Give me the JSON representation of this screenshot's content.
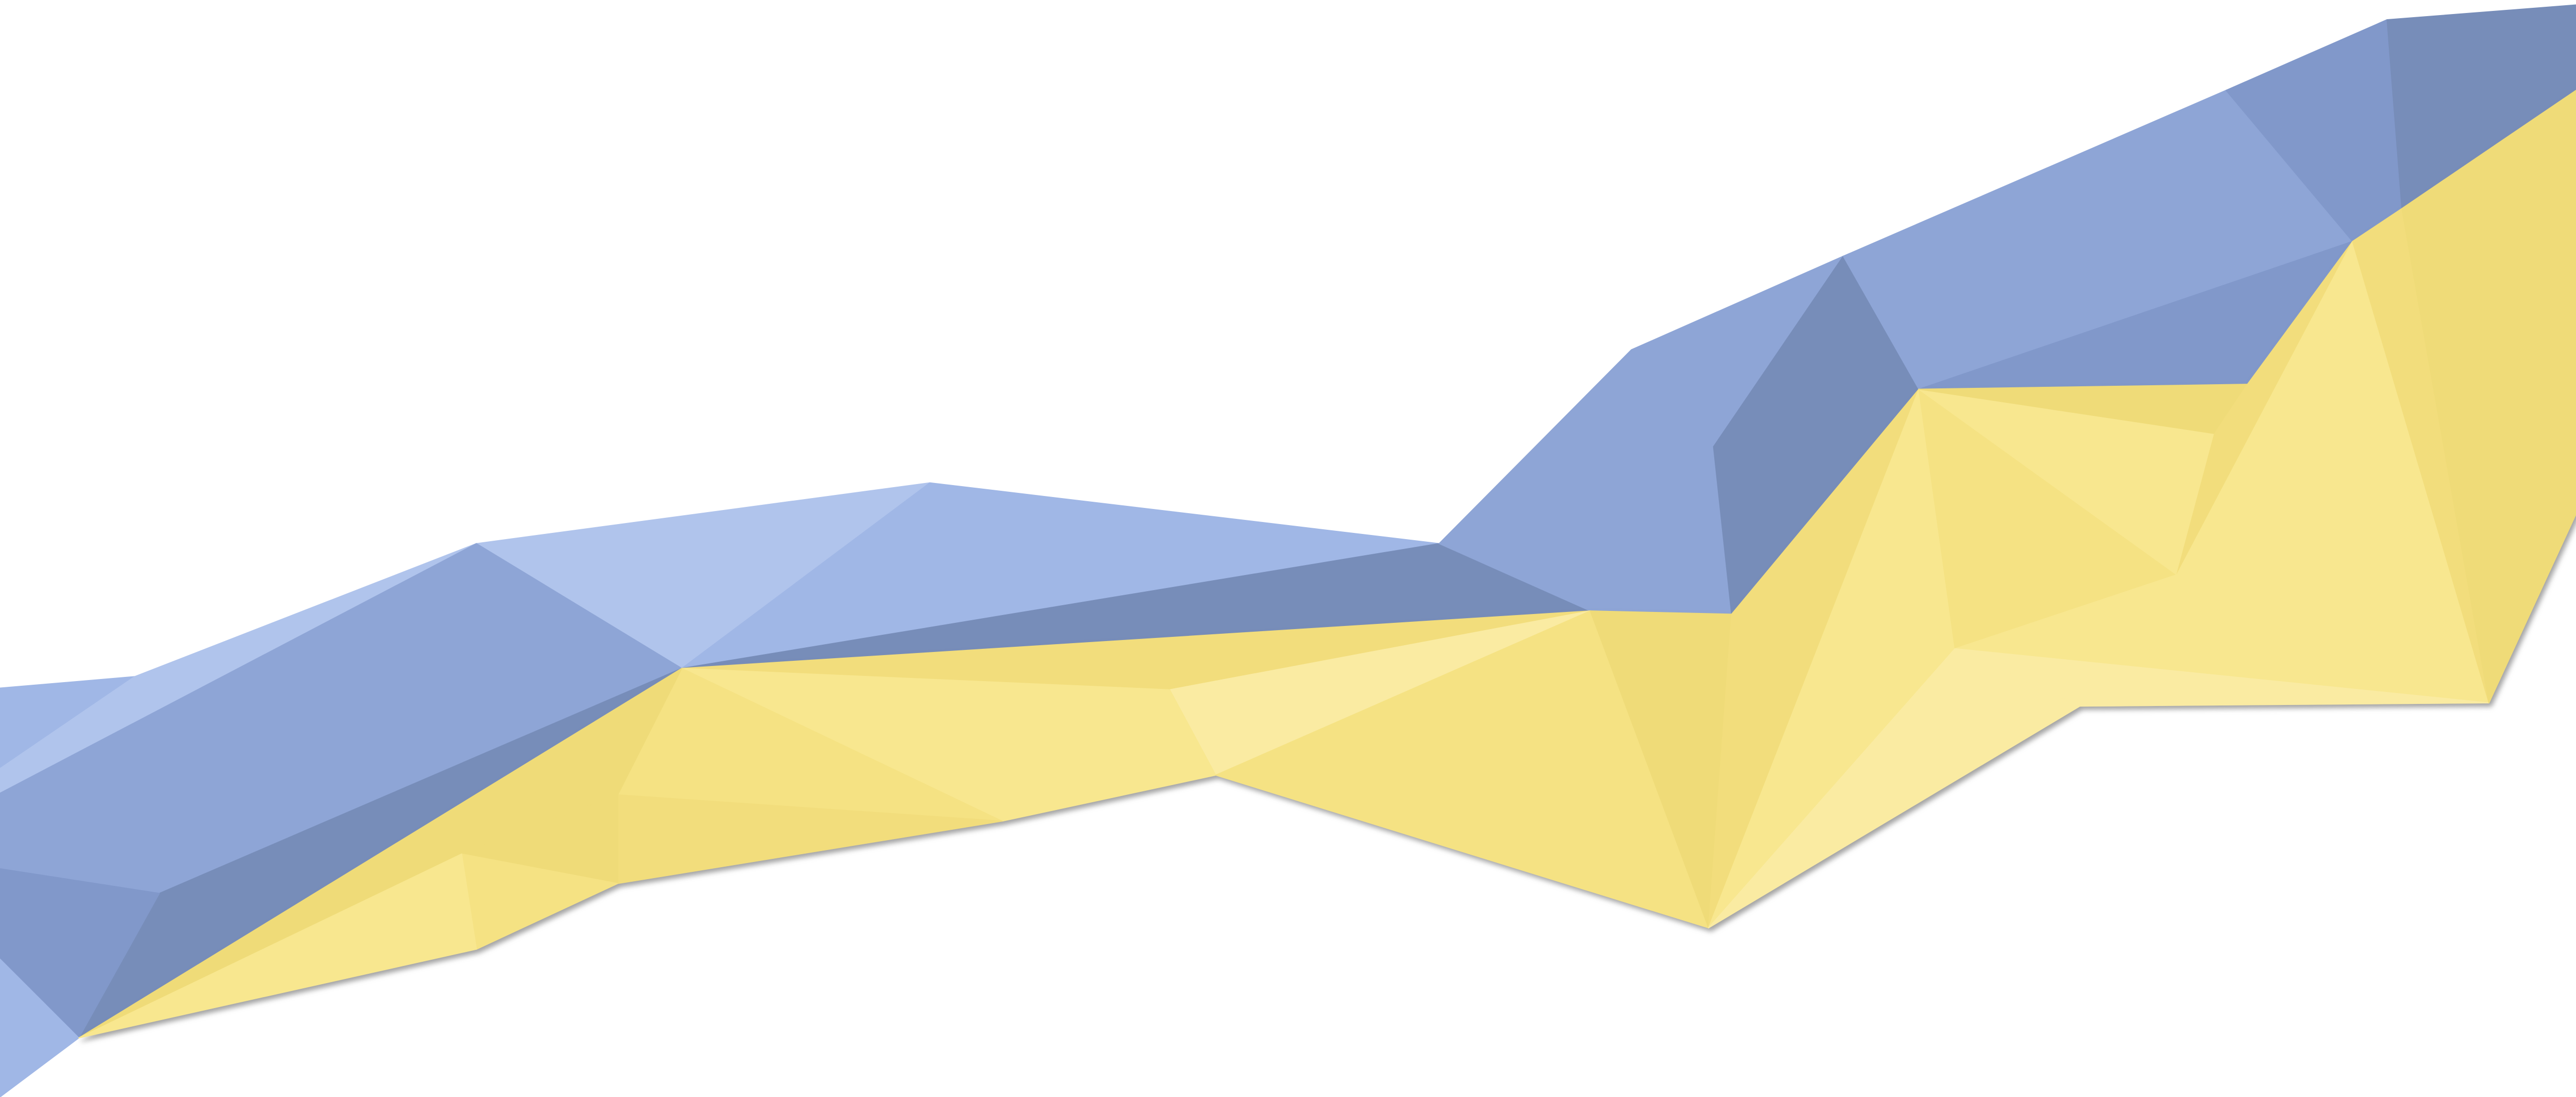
{
  "artwork": {
    "name": "lowpoly-ribbon",
    "palette": {
      "background": "#ffffff",
      "blue_light": "#b0c4ec",
      "blue_soft": "#a0b7e6",
      "blue_mid": "#8ea5d6",
      "blue_deep": "#8198ca",
      "blue_dark": "#778db9",
      "yellow_pale": "#faeba2",
      "yellow_light": "#f8e78f",
      "yellow_mid": "#f5e283",
      "yellow_warm": "#f2dd7b",
      "yellow_deep": "#efdb78",
      "shadow": "#7b7b7b"
    }
  }
}
